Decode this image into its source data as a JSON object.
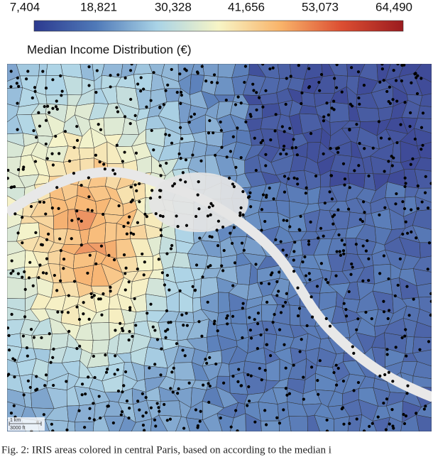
{
  "chart_data": {
    "type": "choropleth",
    "title": "Median Income Distribution (€)",
    "colorbar": {
      "lim": [
        7404,
        64490
      ],
      "ticks": [
        {
          "value": 7404,
          "label": "7,404"
        },
        {
          "value": 18821,
          "label": "18,821"
        },
        {
          "value": 30328,
          "label": "30,328"
        },
        {
          "value": 41656,
          "label": "41,656"
        },
        {
          "value": 53073,
          "label": "53,073"
        },
        {
          "value": 64490,
          "label": "64,490"
        }
      ],
      "colors": [
        "#2c3a8f",
        "#4f79b8",
        "#a9d3e6",
        "#f7f5c6",
        "#f9b46a",
        "#dc4e32",
        "#9b1b1f"
      ]
    },
    "scale_bar": [
      "1 km",
      "3000 ft"
    ],
    "caption": "Fig. 2: IRIS areas colored in central Paris, based on according to the median i"
  }
}
